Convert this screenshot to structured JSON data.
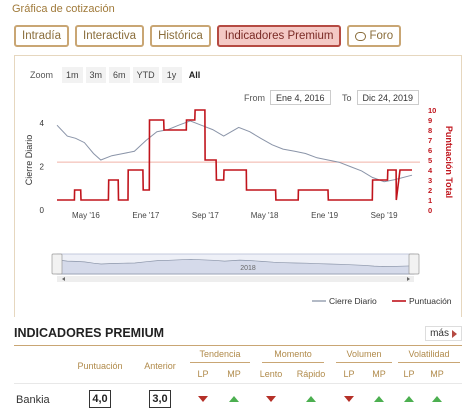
{
  "panel": {
    "title": "Gráfica de cotización"
  },
  "tabs": [
    {
      "label": "Intradía",
      "active": false
    },
    {
      "label": "Interactiva",
      "active": false
    },
    {
      "label": "Histórica",
      "active": false
    },
    {
      "label": "Indicadores Premium",
      "active": true
    },
    {
      "label": "Foro",
      "active": false,
      "icon": "chat-bubble-icon"
    }
  ],
  "zoom": {
    "label": "Zoom",
    "options": [
      "1m",
      "3m",
      "6m",
      "YTD",
      "1y",
      "All"
    ],
    "selected": "All"
  },
  "range": {
    "from_label": "From",
    "from": "Ene 4, 2016",
    "to_label": "To",
    "to": "Dic 24, 2019"
  },
  "chart_data": {
    "type": "line",
    "x_tick_labels": [
      "May '16",
      "Ene '17",
      "Sep '17",
      "May '18",
      "Ene '19",
      "Sep '19"
    ],
    "y_left": {
      "label": "Cierre Diario",
      "ticks": [
        0,
        2,
        4
      ],
      "range": [
        0,
        4.6
      ]
    },
    "y_right": {
      "label": "Puntuación Total",
      "ticks": [
        0,
        1,
        2,
        3,
        4,
        5,
        6,
        7,
        8,
        9,
        10
      ],
      "range": [
        0,
        10
      ]
    },
    "reference_line_left": 2.2,
    "series": [
      {
        "name": "Cierre Diario",
        "color": "#8a94a8",
        "axis": "left",
        "points": [
          [
            "2016-01-04",
            3.9
          ],
          [
            "2016-02-15",
            3.4
          ],
          [
            "2016-03-20",
            3.3
          ],
          [
            "2016-04-25",
            3.1
          ],
          [
            "2016-06-01",
            2.6
          ],
          [
            "2016-07-01",
            2.3
          ],
          [
            "2016-08-15",
            2.5
          ],
          [
            "2016-10-01",
            2.6
          ],
          [
            "2016-11-15",
            2.7
          ],
          [
            "2017-01-02",
            3.2
          ],
          [
            "2017-02-15",
            3.6
          ],
          [
            "2017-04-01",
            3.7
          ],
          [
            "2017-05-15",
            3.9
          ],
          [
            "2017-07-01",
            4.1
          ],
          [
            "2017-08-15",
            3.9
          ],
          [
            "2017-10-01",
            3.7
          ],
          [
            "2017-11-15",
            3.4
          ],
          [
            "2018-01-15",
            3.8
          ],
          [
            "2018-03-01",
            3.6
          ],
          [
            "2018-04-15",
            3.3
          ],
          [
            "2018-06-01",
            3.0
          ],
          [
            "2018-07-15",
            2.8
          ],
          [
            "2018-09-01",
            2.7
          ],
          [
            "2018-10-15",
            2.6
          ],
          [
            "2018-12-01",
            2.4
          ],
          [
            "2019-01-15",
            2.3
          ],
          [
            "2019-03-01",
            2.2
          ],
          [
            "2019-04-15",
            2.0
          ],
          [
            "2019-06-01",
            1.8
          ],
          [
            "2019-07-15",
            1.5
          ],
          [
            "2019-09-01",
            1.3
          ],
          [
            "2019-10-15",
            1.4
          ],
          [
            "2019-12-24",
            1.6
          ]
        ]
      },
      {
        "name": "Puntuación",
        "color": "#c0141c",
        "axis": "right",
        "points": [
          [
            "2016-01-04",
            1
          ],
          [
            "2016-03-15",
            1
          ],
          [
            "2016-03-16",
            2
          ],
          [
            "2016-04-10",
            2
          ],
          [
            "2016-04-11",
            1
          ],
          [
            "2016-08-01",
            1
          ],
          [
            "2016-08-02",
            3
          ],
          [
            "2016-09-10",
            3
          ],
          [
            "2016-09-11",
            1
          ],
          [
            "2016-10-20",
            1
          ],
          [
            "2016-10-21",
            4
          ],
          [
            "2016-12-20",
            4
          ],
          [
            "2016-12-21",
            2
          ],
          [
            "2017-01-15",
            2
          ],
          [
            "2017-01-16",
            9
          ],
          [
            "2017-03-15",
            9
          ],
          [
            "2017-03-16",
            8
          ],
          [
            "2017-06-15",
            8
          ],
          [
            "2017-06-16",
            9
          ],
          [
            "2017-07-20",
            9
          ],
          [
            "2017-07-21",
            10
          ],
          [
            "2017-08-30",
            10
          ],
          [
            "2017-08-31",
            5
          ],
          [
            "2017-10-15",
            5
          ],
          [
            "2017-10-16",
            3
          ],
          [
            "2017-11-15",
            3
          ],
          [
            "2017-11-16",
            4
          ],
          [
            "2018-02-15",
            4
          ],
          [
            "2018-02-16",
            2
          ],
          [
            "2018-06-15",
            2
          ],
          [
            "2018-06-16",
            1
          ],
          [
            "2018-09-15",
            1
          ],
          [
            "2018-09-16",
            2
          ],
          [
            "2019-01-15",
            2
          ],
          [
            "2019-01-16",
            1
          ],
          [
            "2019-07-15",
            1
          ],
          [
            "2019-07-16",
            3
          ],
          [
            "2019-09-15",
            3
          ],
          [
            "2019-09-16",
            4
          ],
          [
            "2019-10-20",
            4
          ],
          [
            "2019-10-21",
            1
          ],
          [
            "2019-11-05",
            4
          ],
          [
            "2019-12-24",
            4
          ]
        ]
      }
    ],
    "navigator": {
      "year_label": "2018"
    },
    "legend": {
      "position": "bottom-right"
    }
  },
  "premium": {
    "title": "INDICADORES PREMIUM",
    "more_label": "más",
    "columns": {
      "puntuacion": "Puntuación",
      "anterior": "Anterior",
      "groups": [
        {
          "label": "Tendencia",
          "subs": [
            "LP",
            "MP"
          ]
        },
        {
          "label": "Momento",
          "subs": [
            "Lento",
            "Rápido"
          ]
        },
        {
          "label": "Volumen",
          "subs": [
            "LP",
            "MP"
          ]
        },
        {
          "label": "Volatilidad",
          "subs": [
            "LP",
            "MP"
          ]
        }
      ]
    },
    "rows": [
      {
        "name": "Bankia",
        "puntuacion": "4,0",
        "anterior": "3,0",
        "signals": [
          "down",
          "up",
          "down",
          "up",
          "down",
          "up",
          "up",
          "up"
        ]
      }
    ],
    "colors": {
      "up": "#4caf50",
      "down": "#b53028"
    }
  }
}
